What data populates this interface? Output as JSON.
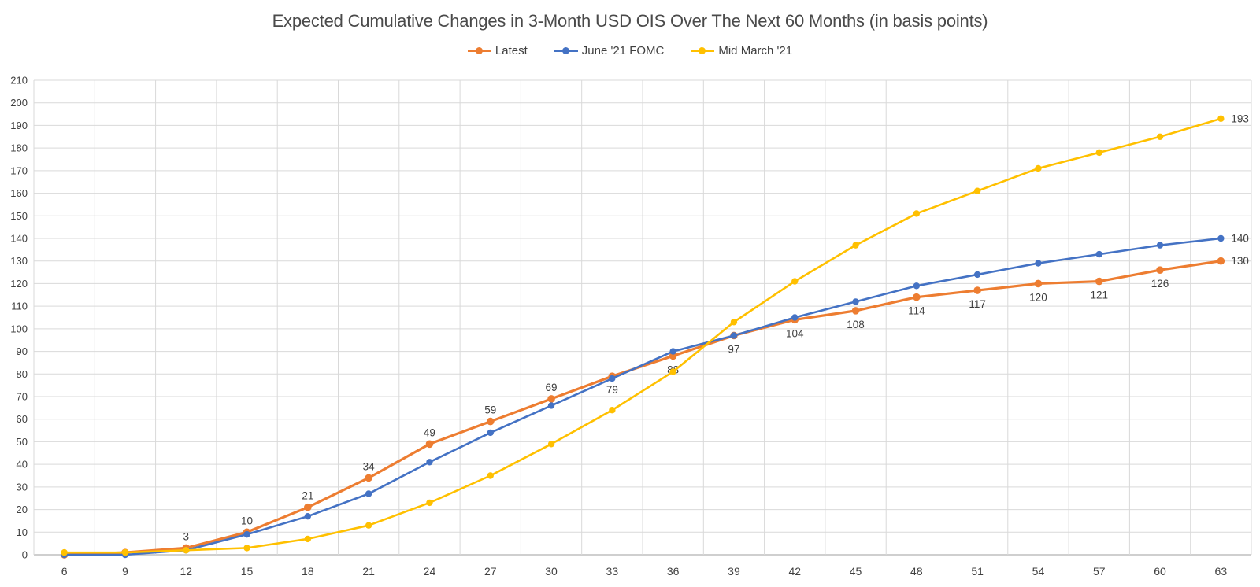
{
  "chart_data": {
    "type": "line",
    "title": "Expected Cumulative Changes in 3-Month USD OIS Over The Next 60 Months (in basis points)",
    "xlabel": "",
    "ylabel": "",
    "legend_position": "top",
    "grid": true,
    "x_axis": {
      "tick_labels": [
        "6",
        "9",
        "12",
        "15",
        "18",
        "21",
        "24",
        "27",
        "30",
        "33",
        "36",
        "39",
        "42",
        "45",
        "48",
        "51",
        "54",
        "57",
        "60",
        "63"
      ]
    },
    "y_axis": {
      "min": 0,
      "max": 210,
      "step": 10
    },
    "categories": [
      6,
      9,
      12,
      15,
      18,
      21,
      24,
      27,
      30,
      33,
      36,
      39,
      42,
      45,
      48,
      51,
      54,
      57,
      60,
      63
    ],
    "series": [
      {
        "name": "Latest",
        "color": "#ED7D31",
        "marker": "circle",
        "values": [
          0,
          1,
          3,
          10,
          21,
          34,
          49,
          59,
          69,
          79,
          88,
          97,
          104,
          108,
          114,
          117,
          120,
          121,
          126,
          130
        ],
        "label_placements": [
          "none",
          "none",
          "above",
          "above",
          "above",
          "above",
          "above",
          "above",
          "above",
          "below",
          "below",
          "below",
          "below",
          "below",
          "below",
          "below",
          "below",
          "below",
          "below",
          "right"
        ]
      },
      {
        "name": "June '21 FOMC",
        "color": "#4472C4",
        "marker": "circle",
        "values": [
          0,
          0,
          2,
          9,
          17,
          27,
          41,
          54,
          66,
          78,
          90,
          97,
          105,
          112,
          119,
          124,
          129,
          133,
          137,
          140
        ],
        "label_placements": [
          "none",
          "none",
          "none",
          "none",
          "none",
          "none",
          "none",
          "none",
          "none",
          "none",
          "none",
          "none",
          "none",
          "none",
          "none",
          "none",
          "none",
          "none",
          "none",
          "right"
        ]
      },
      {
        "name": "Mid March '21",
        "color": "#FFC000",
        "marker": "circle",
        "values": [
          1,
          1,
          2,
          3,
          7,
          13,
          23,
          35,
          49,
          64,
          81,
          103,
          121,
          137,
          151,
          161,
          171,
          178,
          185,
          193
        ],
        "label_placements": [
          "none",
          "none",
          "none",
          "none",
          "none",
          "none",
          "none",
          "none",
          "none",
          "none",
          "none",
          "none",
          "none",
          "none",
          "none",
          "none",
          "none",
          "none",
          "none",
          "right"
        ]
      }
    ]
  },
  "colors": {
    "grid_line": "#D9D9D9",
    "axis_line": "#BFBFBF",
    "tick_text": "#404040",
    "data_label_text": "#3f3f3f",
    "title_text": "#4a4a4a"
  }
}
